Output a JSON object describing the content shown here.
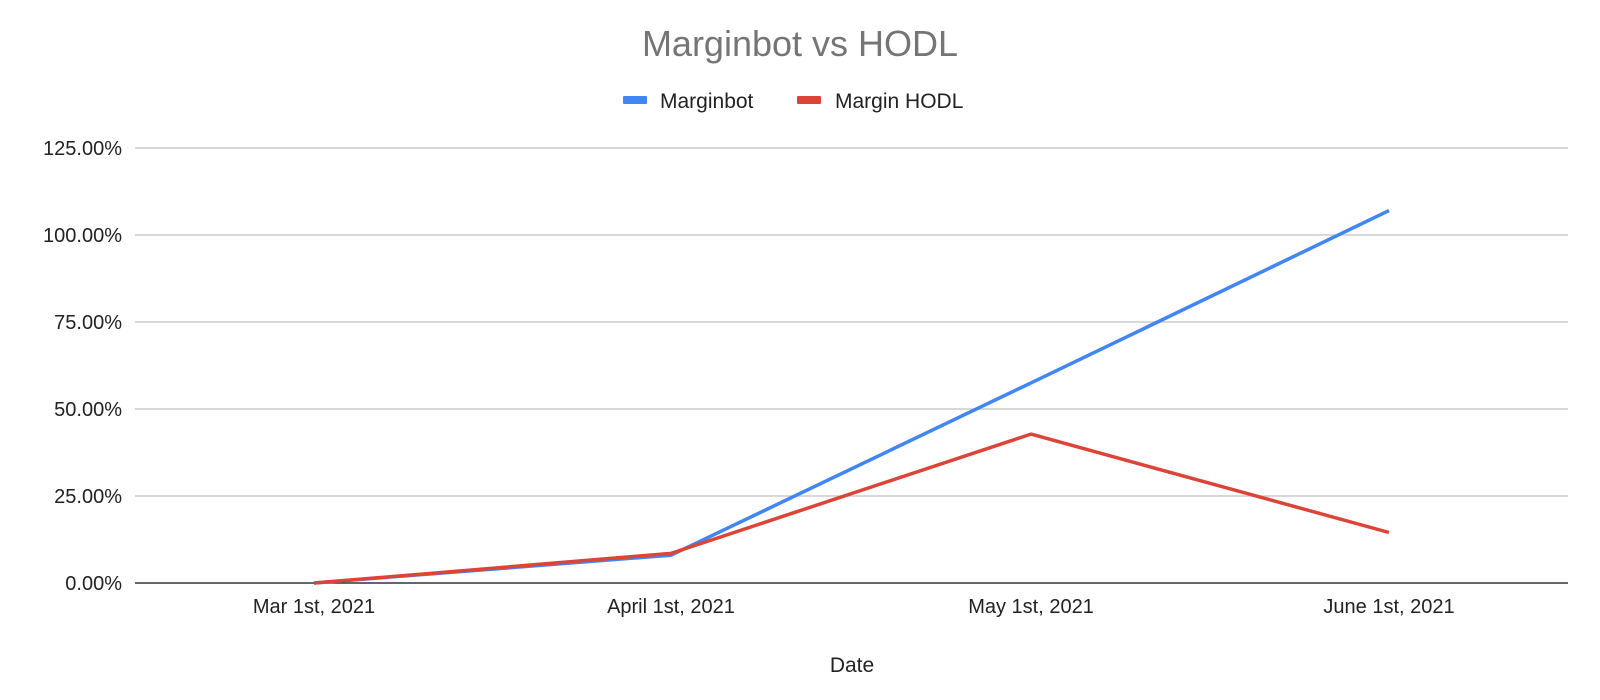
{
  "chart_data": {
    "type": "line",
    "title": "Marginbot vs HODL",
    "xlabel": "Date",
    "ylabel": "",
    "categories": [
      "Mar 1st, 2021",
      "April 1st, 2021",
      "May 1st, 2021",
      "June 1st, 2021"
    ],
    "series": [
      {
        "name": "Marginbot",
        "color": "#4285f4",
        "values": [
          0,
          8.0,
          57.5,
          107.0
        ]
      },
      {
        "name": "Margin HODL",
        "color": "#db4437",
        "values": [
          0,
          8.5,
          42.8,
          14.5
        ]
      }
    ],
    "ylim": [
      0,
      125
    ],
    "yticks": [
      "0.00%",
      "25.00%",
      "50.00%",
      "75.00%",
      "100.00%",
      "125.00%"
    ],
    "ytick_values": [
      0,
      25,
      50,
      75,
      100,
      125
    ],
    "grid": true,
    "legend_position": "top-center"
  }
}
